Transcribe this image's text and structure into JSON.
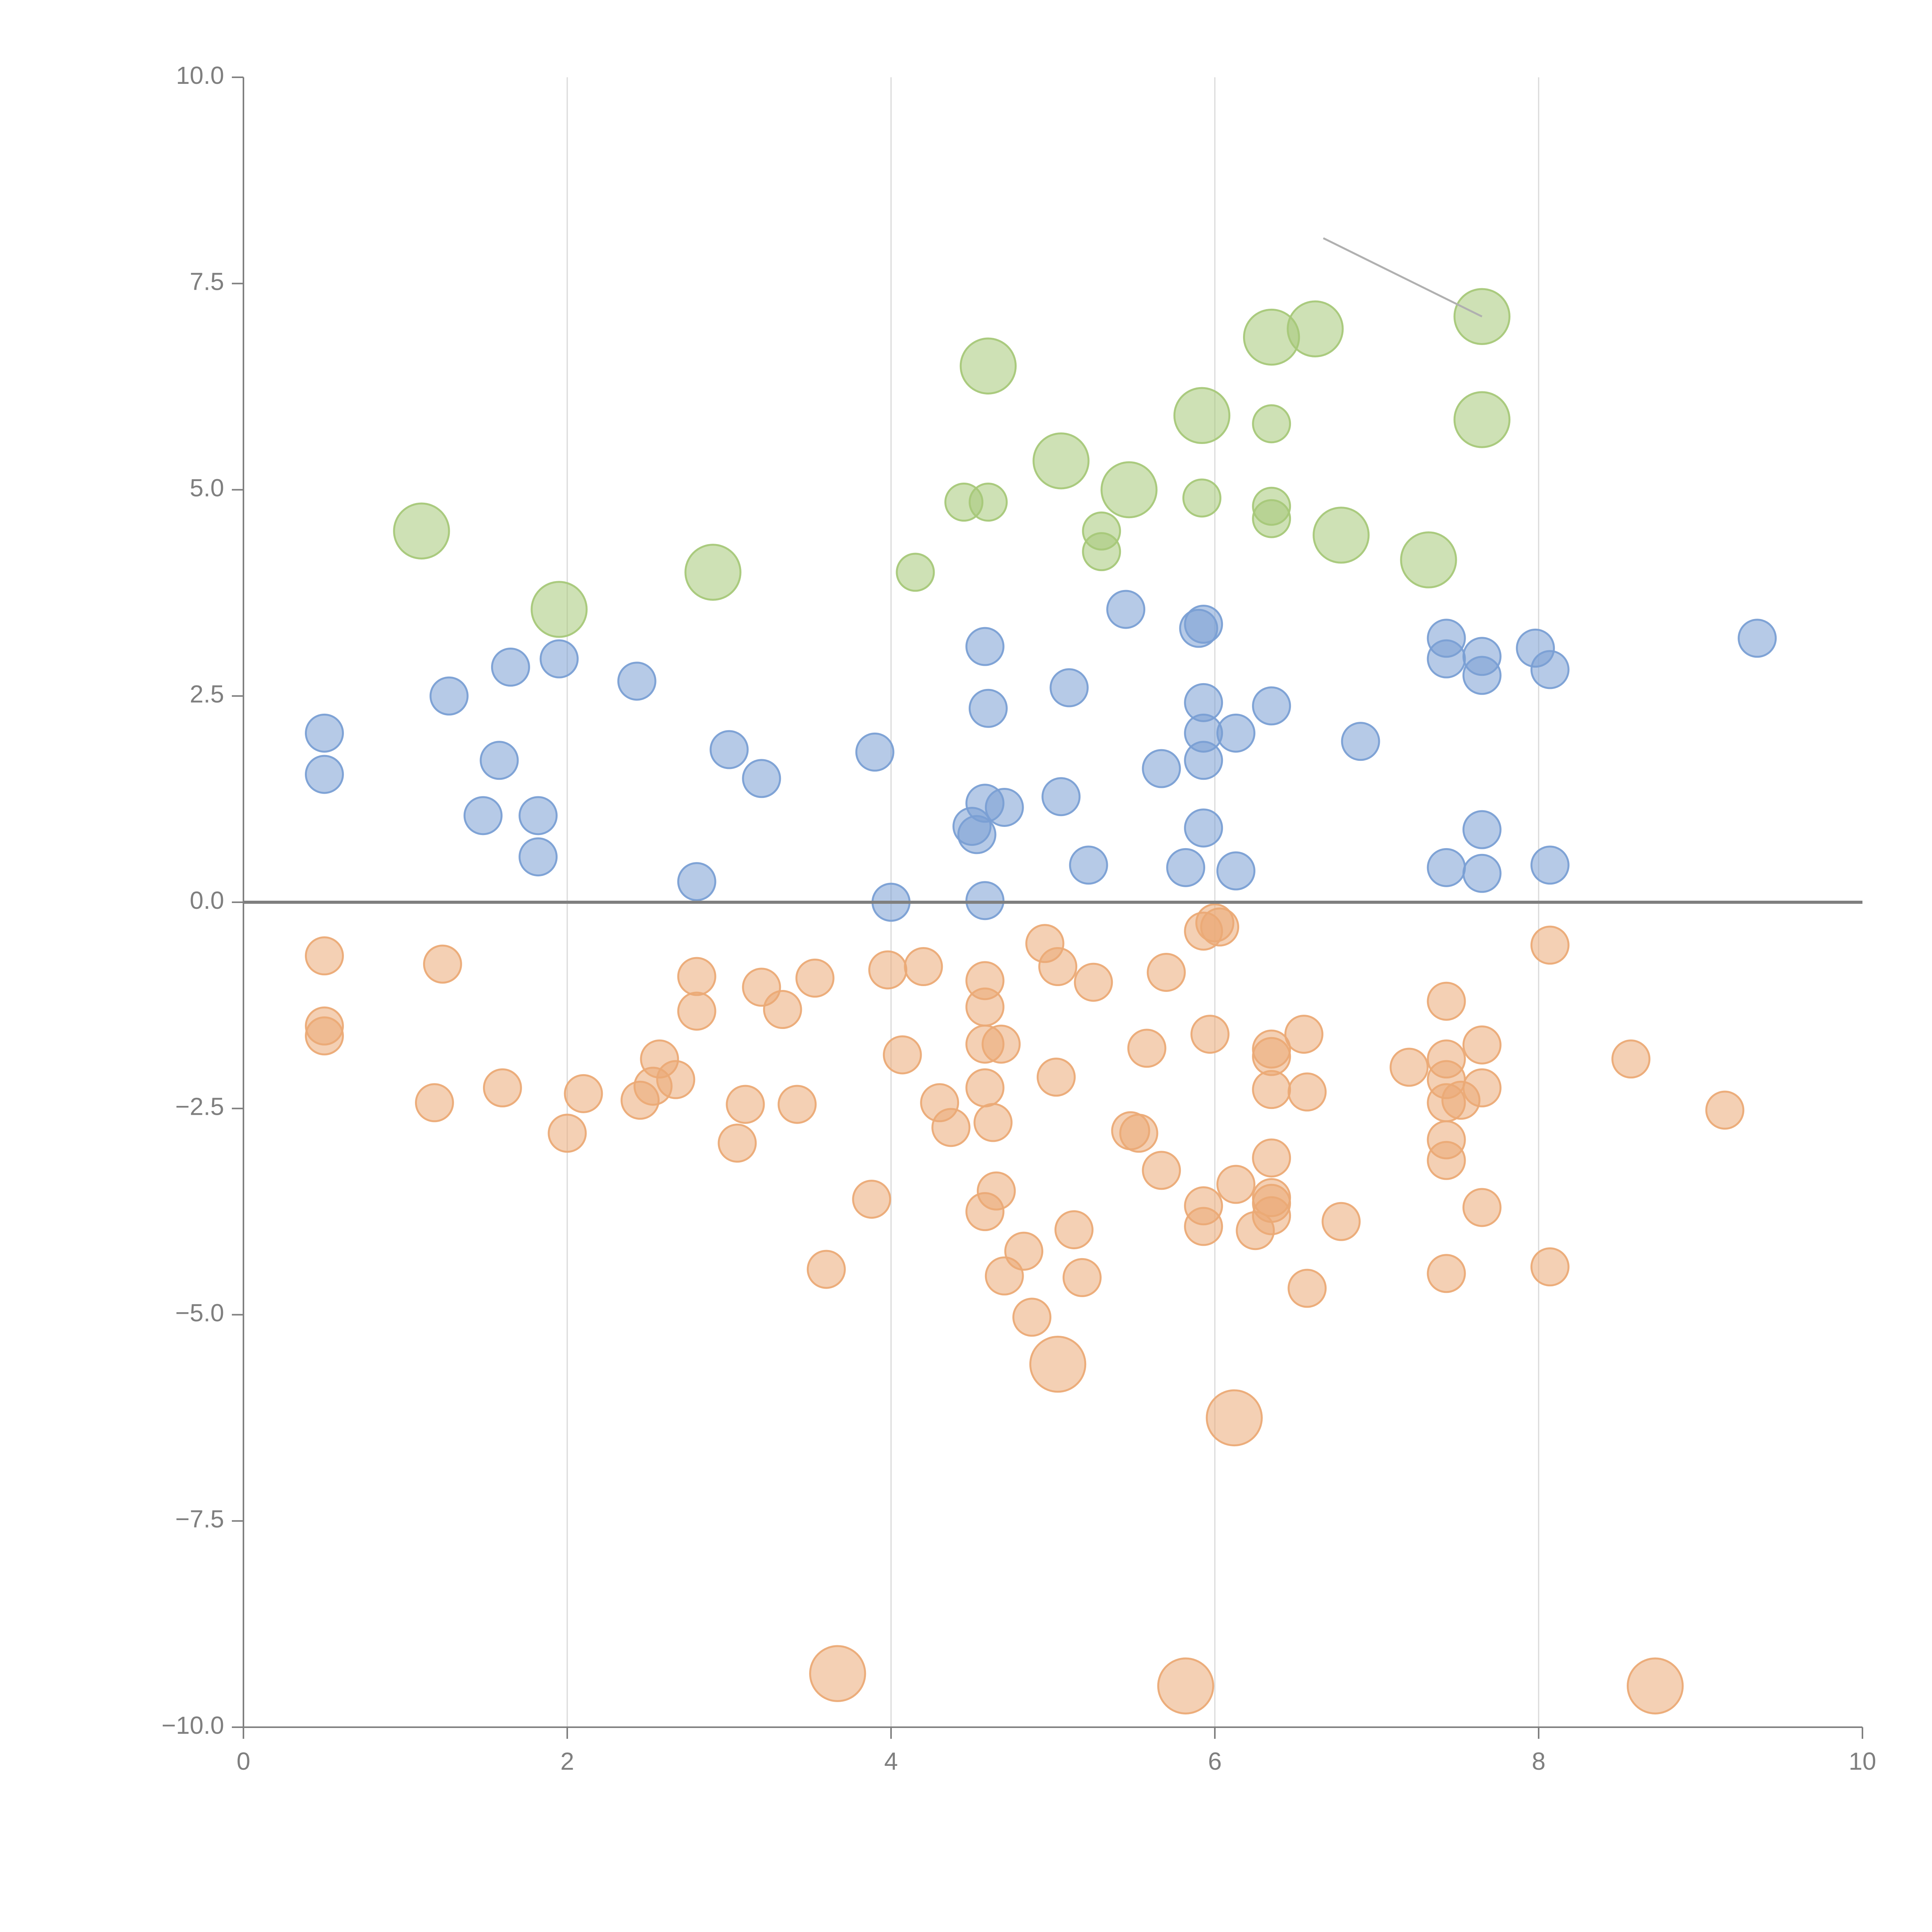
{
  "chart_data": {
    "type": "scatter",
    "title": "",
    "xlabel": "",
    "ylabel": "",
    "xlim": [
      0,
      10
    ],
    "ylim": [
      -10,
      10
    ],
    "x_ticks": [
      0,
      2,
      4,
      6,
      8,
      10
    ],
    "y_ticks": [
      -10,
      -7.5,
      -5,
      -2.5,
      0,
      2.5,
      5,
      7.5,
      10
    ],
    "x_tick_labels": [
      "0",
      "2",
      "4",
      "6",
      "8",
      "10"
    ],
    "y_tick_labels": [
      "−10.0",
      "−7.5",
      "−5.0",
      "−2.5",
      "0.0",
      "2.5",
      "5.0",
      "7.5",
      "10.0"
    ],
    "grid": "vertical only",
    "zero_line": true,
    "series": [
      {
        "name": "green",
        "color": "#a6c879",
        "size_unit": "relative",
        "points": [
          [
            1.1,
            4.5,
            2.2
          ],
          [
            1.95,
            3.55,
            2.2
          ],
          [
            2.9,
            4.0,
            2.2
          ],
          [
            4.15,
            4.0,
            1
          ],
          [
            4.45,
            4.85,
            1
          ],
          [
            4.6,
            4.85,
            1
          ],
          [
            4.6,
            6.5,
            2.2
          ],
          [
            5.05,
            5.35,
            2.2
          ],
          [
            5.3,
            4.5,
            1
          ],
          [
            5.3,
            4.25,
            1
          ],
          [
            5.47,
            5.0,
            2.2
          ],
          [
            5.92,
            5.9,
            2.2
          ],
          [
            5.92,
            4.9,
            1
          ],
          [
            6.35,
            6.85,
            2.2
          ],
          [
            6.35,
            5.8,
            1
          ],
          [
            6.35,
            4.8,
            1
          ],
          [
            6.35,
            4.65,
            1
          ],
          [
            6.62,
            6.95,
            2.2
          ],
          [
            6.78,
            4.45,
            2.2
          ],
          [
            7.32,
            4.15,
            2.2
          ],
          [
            7.65,
            7.1,
            2.2
          ],
          [
            7.65,
            5.85,
            2.2
          ]
        ]
      },
      {
        "name": "blue",
        "color": "#7a9fd4",
        "size_unit": "relative",
        "points": [
          [
            0.5,
            2.05,
            1
          ],
          [
            0.5,
            1.55,
            1
          ],
          [
            1.27,
            2.5,
            1
          ],
          [
            1.48,
            1.05,
            1
          ],
          [
            1.58,
            1.72,
            1
          ],
          [
            1.65,
            2.85,
            1
          ],
          [
            1.82,
            1.05,
            1
          ],
          [
            1.82,
            0.55,
            1
          ],
          [
            1.95,
            2.95,
            1
          ],
          [
            2.43,
            2.68,
            1
          ],
          [
            2.8,
            0.25,
            1
          ],
          [
            3.0,
            1.85,
            1
          ],
          [
            3.2,
            1.5,
            1
          ],
          [
            3.9,
            1.82,
            1
          ],
          [
            4.0,
            0.0,
            1
          ],
          [
            4.5,
            0.92,
            1
          ],
          [
            4.53,
            0.82,
            1
          ],
          [
            4.58,
            1.2,
            1
          ],
          [
            4.58,
            3.1,
            1
          ],
          [
            4.6,
            2.35,
            1
          ],
          [
            4.58,
            0.02,
            1
          ],
          [
            4.7,
            1.15,
            1
          ],
          [
            5.05,
            1.28,
            1
          ],
          [
            5.1,
            2.6,
            1
          ],
          [
            5.22,
            0.45,
            1
          ],
          [
            5.45,
            3.55,
            1
          ],
          [
            5.67,
            1.62,
            1
          ],
          [
            5.82,
            0.42,
            1
          ],
          [
            5.9,
            3.32,
            1
          ],
          [
            5.93,
            3.37,
            1
          ],
          [
            5.93,
            2.42,
            1
          ],
          [
            5.93,
            2.05,
            1
          ],
          [
            5.93,
            1.72,
            1
          ],
          [
            5.93,
            0.9,
            1
          ],
          [
            6.13,
            2.05,
            1
          ],
          [
            6.13,
            0.38,
            1
          ],
          [
            6.35,
            2.38,
            1
          ],
          [
            6.9,
            1.95,
            1
          ],
          [
            7.43,
            3.2,
            1
          ],
          [
            7.43,
            2.95,
            1
          ],
          [
            7.43,
            0.42,
            1
          ],
          [
            7.65,
            2.98,
            1
          ],
          [
            7.65,
            2.75,
            1
          ],
          [
            7.65,
            0.88,
            1
          ],
          [
            7.65,
            0.35,
            1
          ],
          [
            7.98,
            3.08,
            1
          ],
          [
            8.07,
            2.82,
            1
          ],
          [
            8.07,
            0.45,
            1
          ],
          [
            9.35,
            3.2,
            1
          ]
        ]
      },
      {
        "name": "orange",
        "color": "#ebaa76",
        "size_unit": "relative",
        "points": [
          [
            0.5,
            -0.65,
            1
          ],
          [
            0.5,
            -1.5,
            1
          ],
          [
            0.5,
            -1.62,
            1
          ],
          [
            1.18,
            -2.43,
            1
          ],
          [
            1.23,
            -0.75,
            1
          ],
          [
            1.6,
            -2.25,
            1
          ],
          [
            2.0,
            -2.8,
            1
          ],
          [
            2.1,
            -2.32,
            1
          ],
          [
            2.45,
            -2.4,
            1
          ],
          [
            2.53,
            -2.23,
            1
          ],
          [
            2.57,
            -1.9,
            1
          ],
          [
            2.67,
            -2.15,
            1
          ],
          [
            2.8,
            -0.9,
            1
          ],
          [
            2.8,
            -1.32,
            1
          ],
          [
            3.05,
            -2.92,
            1
          ],
          [
            3.1,
            -2.45,
            1
          ],
          [
            3.2,
            -1.03,
            1
          ],
          [
            3.33,
            -1.3,
            1
          ],
          [
            3.42,
            -2.45,
            1
          ],
          [
            3.53,
            -0.92,
            1
          ],
          [
            3.6,
            -4.45,
            1
          ],
          [
            3.88,
            -3.6,
            1
          ],
          [
            3.98,
            -0.82,
            1
          ],
          [
            4.07,
            -1.85,
            1
          ],
          [
            4.2,
            -0.78,
            1
          ],
          [
            4.3,
            -2.43,
            1
          ],
          [
            4.37,
            -2.73,
            1
          ],
          [
            4.58,
            -0.95,
            1
          ],
          [
            4.58,
            -1.27,
            1
          ],
          [
            4.58,
            -1.72,
            1
          ],
          [
            4.58,
            -2.25,
            1
          ],
          [
            4.58,
            -3.75,
            1
          ],
          [
            4.63,
            -2.67,
            1
          ],
          [
            4.65,
            -3.5,
            1
          ],
          [
            4.68,
            -1.72,
            1
          ],
          [
            4.7,
            -4.53,
            1
          ],
          [
            4.82,
            -4.23,
            1
          ],
          [
            4.87,
            -5.03,
            1
          ],
          [
            4.95,
            -0.5,
            1
          ],
          [
            5.03,
            -0.78,
            1
          ],
          [
            5.02,
            -2.12,
            1
          ],
          [
            5.13,
            -3.97,
            1
          ],
          [
            5.18,
            -4.55,
            1
          ],
          [
            5.25,
            -0.97,
            1
          ],
          [
            5.48,
            -2.77,
            1
          ],
          [
            5.53,
            -2.8,
            1
          ],
          [
            5.58,
            -1.77,
            1
          ],
          [
            5.67,
            -3.25,
            1
          ],
          [
            5.7,
            -0.85,
            1
          ],
          [
            5.93,
            -0.35,
            1
          ],
          [
            5.93,
            -3.68,
            1
          ],
          [
            5.93,
            -3.93,
            1
          ],
          [
            5.97,
            -1.6,
            1
          ],
          [
            6.0,
            -0.25,
            1
          ],
          [
            6.03,
            -0.3,
            1
          ],
          [
            6.13,
            -3.42,
            1
          ],
          [
            6.25,
            -3.98,
            1
          ],
          [
            6.35,
            -1.78,
            1
          ],
          [
            6.35,
            -1.87,
            1
          ],
          [
            6.35,
            -2.27,
            1
          ],
          [
            6.35,
            -3.1,
            1
          ],
          [
            6.35,
            -3.58,
            1
          ],
          [
            6.35,
            -3.65,
            1
          ],
          [
            6.35,
            -3.8,
            1
          ],
          [
            6.55,
            -1.6,
            1
          ],
          [
            6.57,
            -2.3,
            1
          ],
          [
            6.57,
            -4.68,
            1
          ],
          [
            6.78,
            -3.87,
            1
          ],
          [
            7.2,
            -2.0,
            1
          ],
          [
            7.43,
            -1.2,
            1
          ],
          [
            7.43,
            -1.9,
            1
          ],
          [
            7.43,
            -2.15,
            1
          ],
          [
            7.43,
            -2.43,
            1
          ],
          [
            7.43,
            -2.88,
            1
          ],
          [
            7.43,
            -3.13,
            1
          ],
          [
            7.43,
            -4.5,
            1
          ],
          [
            7.52,
            -2.4,
            1
          ],
          [
            7.65,
            -1.73,
            1
          ],
          [
            7.65,
            -2.25,
            1
          ],
          [
            7.65,
            -3.7,
            1
          ],
          [
            8.07,
            -0.52,
            1
          ],
          [
            8.07,
            -4.42,
            1
          ],
          [
            8.57,
            -1.9,
            1
          ],
          [
            9.15,
            -2.52,
            1
          ],
          [
            5.03,
            -5.6,
            2.2
          ],
          [
            6.12,
            -6.25,
            2.2
          ],
          [
            3.67,
            -9.35,
            2.2
          ],
          [
            5.82,
            -9.5,
            2.2
          ],
          [
            8.72,
            -9.5,
            2.2
          ]
        ]
      }
    ],
    "annotations": [
      {
        "type": "leader",
        "from": [
          7.65,
          7.1
        ],
        "to": [
          6.67,
          8.05
        ]
      }
    ]
  }
}
